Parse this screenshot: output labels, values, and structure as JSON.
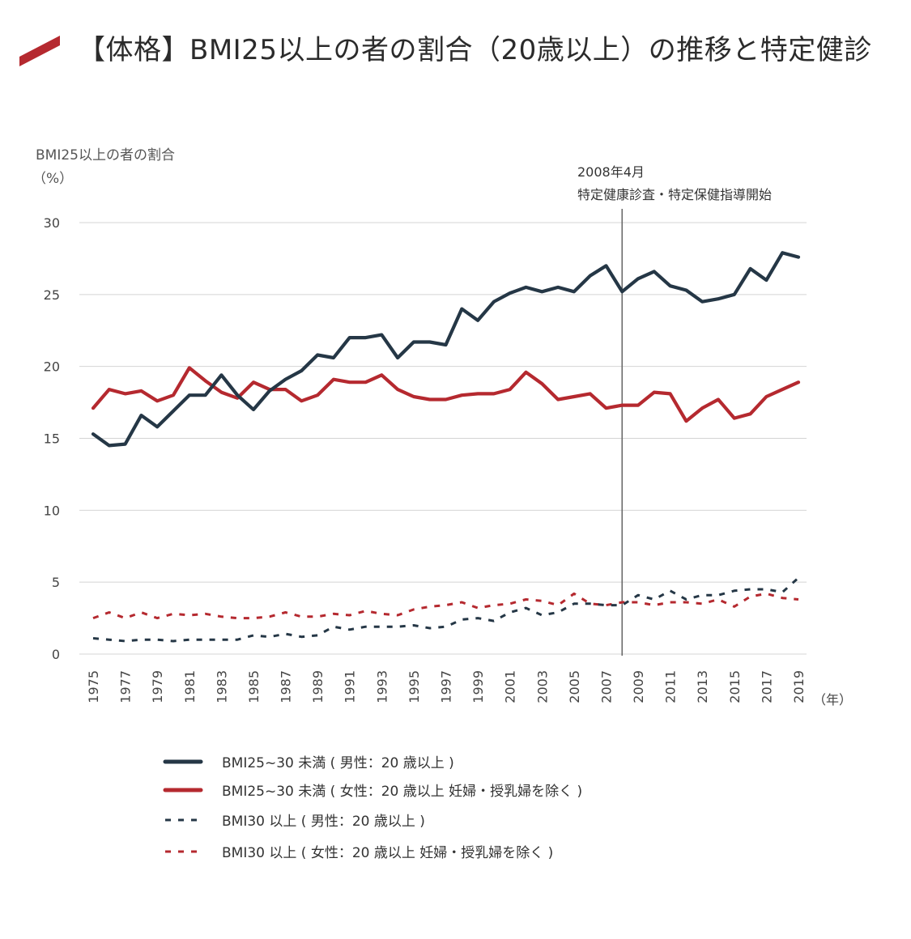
{
  "page": {
    "title": "【体格】BMI25以上の者の割合（20歳以上）の推移と特定健診"
  },
  "colors": {
    "accent": "#b5292f",
    "navy": "#253746",
    "grid": "#d4d4d4",
    "vline": "#6b6b6b"
  },
  "chart_data": {
    "type": "line",
    "ylabel": "BMI25以上の者の割合",
    "yunit": "（%）",
    "xunit": "（年）",
    "ylim": [
      0,
      30
    ],
    "yticks": [
      0,
      5,
      10,
      15,
      20,
      25,
      30
    ],
    "grid": true,
    "x": [
      1975,
      1976,
      1977,
      1978,
      1979,
      1980,
      1981,
      1982,
      1983,
      1984,
      1985,
      1986,
      1987,
      1988,
      1989,
      1990,
      1991,
      1992,
      1993,
      1994,
      1995,
      1996,
      1997,
      1998,
      1999,
      2000,
      2001,
      2002,
      2003,
      2004,
      2005,
      2006,
      2007,
      2008,
      2009,
      2010,
      2011,
      2012,
      2013,
      2014,
      2015,
      2016,
      2017,
      2018,
      2019
    ],
    "xticks": [
      "1975",
      "1977",
      "1979",
      "1981",
      "1983",
      "1985",
      "1987",
      "1989",
      "1991",
      "1993",
      "1995",
      "1997",
      "1999",
      "2001",
      "2003",
      "2005",
      "2007",
      "2009",
      "2011",
      "2013",
      "2015",
      "2017",
      "2019"
    ],
    "annotation": {
      "x": 2008,
      "line1": "2008年4月",
      "line2": "特定健康診査・特定保健指導開始"
    },
    "series": [
      {
        "name": "BMI25~30 未満 ( 男性：20 歳以上 )",
        "color": "#253746",
        "dashed": false,
        "values": [
          15.3,
          14.5,
          14.6,
          16.6,
          15.8,
          16.9,
          18.0,
          18.0,
          19.4,
          18.0,
          17.0,
          18.3,
          19.1,
          19.7,
          20.8,
          20.6,
          22.0,
          22.0,
          22.2,
          20.6,
          21.7,
          21.7,
          21.5,
          24.0,
          23.2,
          24.5,
          25.1,
          25.5,
          25.2,
          25.5,
          25.2,
          26.3,
          27.0,
          25.2,
          26.1,
          26.6,
          25.6,
          25.3,
          24.5,
          24.7,
          25.0,
          26.8,
          26.0,
          27.9,
          27.6
        ]
      },
      {
        "name": "BMI25~30 未満 ( 女性：20 歳以上 妊婦・授乳婦を除く )",
        "color": "#b5292f",
        "dashed": false,
        "values": [
          17.1,
          18.4,
          18.1,
          18.3,
          17.6,
          18.0,
          19.9,
          19.0,
          18.2,
          17.8,
          18.9,
          18.4,
          18.4,
          17.6,
          18.0,
          19.1,
          18.9,
          18.9,
          19.4,
          18.4,
          17.9,
          17.7,
          17.7,
          18.0,
          18.1,
          18.1,
          18.4,
          19.6,
          18.8,
          17.7,
          17.9,
          18.1,
          17.1,
          17.3,
          17.3,
          18.2,
          18.1,
          16.2,
          17.1,
          17.7,
          16.4,
          16.7,
          17.9,
          18.4,
          18.9
        ]
      },
      {
        "name": "BMI30 以上 ( 男性：20 歳以上 )",
        "color": "#253746",
        "dashed": true,
        "values": [
          1.1,
          1.0,
          0.9,
          1.0,
          1.0,
          0.9,
          1.0,
          1.0,
          1.0,
          1.0,
          1.3,
          1.2,
          1.4,
          1.2,
          1.3,
          1.9,
          1.7,
          1.9,
          1.9,
          1.9,
          2.0,
          1.8,
          1.9,
          2.4,
          2.5,
          2.3,
          2.9,
          3.2,
          2.7,
          2.9,
          3.5,
          3.5,
          3.4,
          3.4,
          4.1,
          3.8,
          4.4,
          3.8,
          4.1,
          4.1,
          4.4,
          4.5,
          4.5,
          4.3,
          5.3
        ]
      },
      {
        "name": "BMI30 以上 ( 女性：20 歳以上 妊婦・授乳婦を除く )",
        "color": "#b5292f",
        "dashed": true,
        "values": [
          2.5,
          2.9,
          2.5,
          2.9,
          2.5,
          2.8,
          2.7,
          2.8,
          2.6,
          2.5,
          2.5,
          2.6,
          2.9,
          2.6,
          2.6,
          2.8,
          2.7,
          3.0,
          2.8,
          2.7,
          3.1,
          3.3,
          3.4,
          3.6,
          3.2,
          3.4,
          3.5,
          3.8,
          3.7,
          3.4,
          4.2,
          3.5,
          3.4,
          3.6,
          3.6,
          3.4,
          3.6,
          3.6,
          3.5,
          3.8,
          3.3,
          4.0,
          4.2,
          3.9,
          3.8
        ]
      }
    ]
  }
}
